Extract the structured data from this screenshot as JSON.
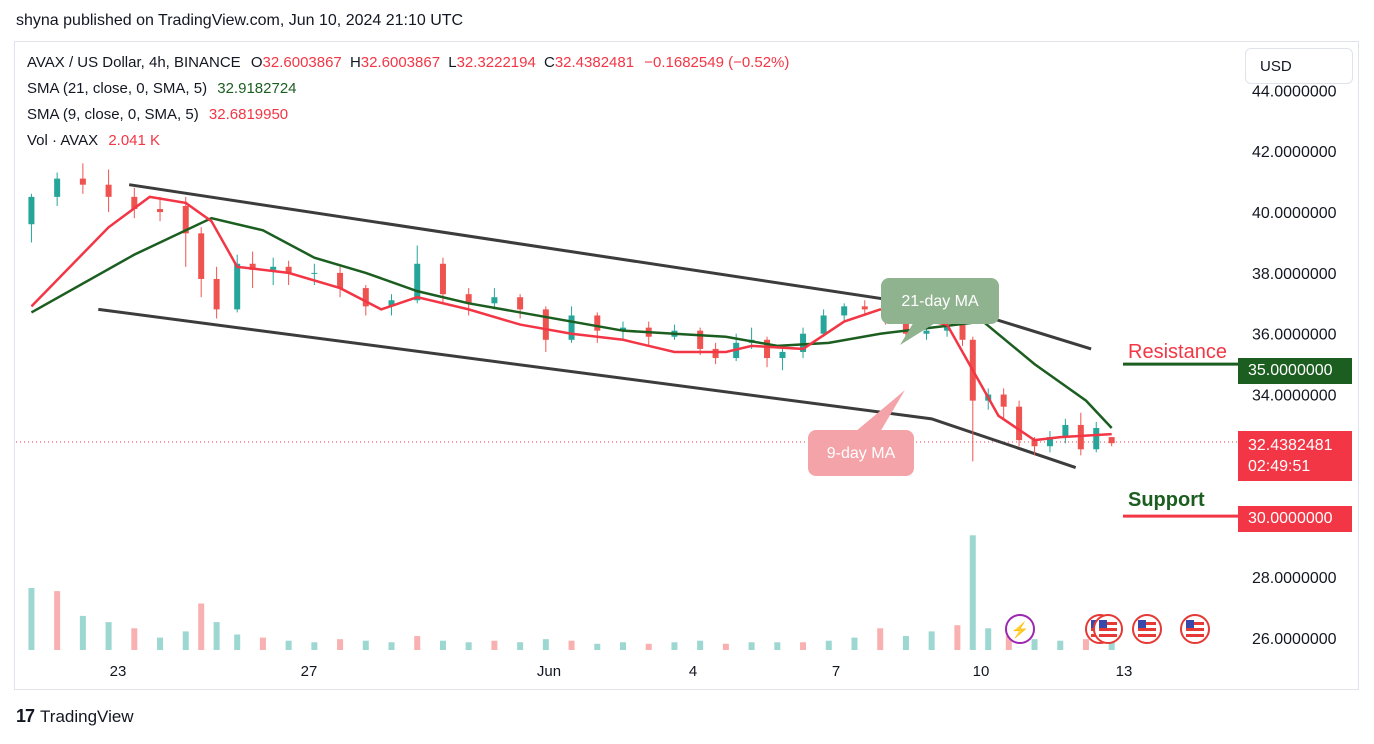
{
  "publisher_line": "shyna published on TradingView.com, Jun 10, 2024 21:10 UTC",
  "legend": {
    "symbol": "AVAX / US Dollar, 4h, BINANCE",
    "o_label": "O",
    "o": "32.6003867",
    "h_label": "H",
    "h": "32.6003867",
    "l_label": "L",
    "l": "32.3222194",
    "c_label": "C",
    "c": "32.4382481",
    "change": "−0.1682549 (−0.52%)",
    "sma21_label": "SMA (21, close, 0, SMA, 5)",
    "sma21_value": "32.9182724",
    "sma9_label": "SMA (9, close, 0, SMA, 5)",
    "sma9_value": "32.6819950",
    "vol_label": "Vol · AVAX",
    "vol_value": "2.041 K"
  },
  "currency_button": "USD",
  "annotations": {
    "ma21": "21-day MA",
    "ma9": "9-day MA",
    "resistance": "Resistance",
    "support": "Support"
  },
  "tags": {
    "resistance_price": "35.0000000",
    "current_price": "32.4382481",
    "countdown": "02:49:51",
    "support_price": "30.0000000"
  },
  "footer_brand": "TradingView",
  "colors": {
    "up": "#26a69a",
    "down": "#ef5350",
    "sma9": "#f23645",
    "sma21": "#1b5e20",
    "channel": "#3c3c3c",
    "resistance": "#1b5e20",
    "support": "#f23645"
  },
  "chart_data": {
    "type": "candlestick",
    "y_ticks": [
      "44.0000000",
      "42.0000000",
      "40.0000000",
      "38.0000000",
      "36.0000000",
      "34.0000000",
      "28.0000000",
      "26.0000000"
    ],
    "x_ticks": [
      "23",
      "27",
      "Jun",
      "4",
      "7",
      "10",
      "13"
    ],
    "resistance_level": 35.0,
    "support_level": 30.0,
    "last_price": 32.4382481,
    "sma21_path": [
      [
        20.0,
        36.7
      ],
      [
        22.0,
        38.6
      ],
      [
        23.5,
        39.8
      ],
      [
        24.5,
        39.4
      ],
      [
        25.5,
        38.5
      ],
      [
        26.5,
        38.0
      ],
      [
        27.5,
        37.4
      ],
      [
        28.5,
        37.0
      ],
      [
        29.5,
        36.7
      ],
      [
        30.5,
        36.4
      ],
      [
        31.5,
        36.1
      ],
      [
        32.5,
        36.0
      ],
      [
        33.5,
        35.9
      ],
      [
        34.5,
        35.6
      ],
      [
        35.5,
        35.7
      ],
      [
        36.5,
        36.0
      ],
      [
        37.5,
        36.2
      ],
      [
        38.5,
        36.4
      ],
      [
        39.5,
        35.0
      ],
      [
        40.5,
        33.8
      ],
      [
        41.0,
        32.9
      ]
    ],
    "sma9_path": [
      [
        20.0,
        36.9
      ],
      [
        21.5,
        39.5
      ],
      [
        22.3,
        40.5
      ],
      [
        23.0,
        40.3
      ],
      [
        23.5,
        39.7
      ],
      [
        24.0,
        38.2
      ],
      [
        25.0,
        38.0
      ],
      [
        26.0,
        37.5
      ],
      [
        26.8,
        36.8
      ],
      [
        27.5,
        37.2
      ],
      [
        28.5,
        36.8
      ],
      [
        29.5,
        36.3
      ],
      [
        30.5,
        36.0
      ],
      [
        31.5,
        35.8
      ],
      [
        32.5,
        35.4
      ],
      [
        33.5,
        35.4
      ],
      [
        34.0,
        35.6
      ],
      [
        35.0,
        35.5
      ],
      [
        35.8,
        36.4
      ],
      [
        36.5,
        36.8
      ],
      [
        37.2,
        36.5
      ],
      [
        37.8,
        36.3
      ],
      [
        38.3,
        34.8
      ],
      [
        38.8,
        33.3
      ],
      [
        39.5,
        32.5
      ],
      [
        40.0,
        32.6
      ],
      [
        41.0,
        32.7
      ]
    ],
    "channel_upper": [
      [
        21.9,
        40.9
      ],
      [
        38.3,
        36.7
      ],
      [
        40.6,
        35.5
      ]
    ],
    "channel_lower": [
      [
        21.3,
        36.8
      ],
      [
        37.5,
        33.2
      ],
      [
        40.3,
        31.6
      ]
    ],
    "candles": [
      [
        20.0,
        39.6,
        40.5,
        39.0,
        40.6
      ],
      [
        20.5,
        40.5,
        41.1,
        40.2,
        41.3
      ],
      [
        21.0,
        41.1,
        40.9,
        40.6,
        41.6
      ],
      [
        21.5,
        40.9,
        40.5,
        40.0,
        41.4
      ],
      [
        22.0,
        40.5,
        40.1,
        39.8,
        40.8
      ],
      [
        22.5,
        40.1,
        40.0,
        39.7,
        40.5
      ],
      [
        23.0,
        40.2,
        39.3,
        38.2,
        40.5
      ],
      [
        23.3,
        39.3,
        37.8,
        37.2,
        39.5
      ],
      [
        23.6,
        37.8,
        36.8,
        36.5,
        38.2
      ],
      [
        24.0,
        36.8,
        38.3,
        36.7,
        38.6
      ],
      [
        24.3,
        38.3,
        38.1,
        37.5,
        38.7
      ],
      [
        24.7,
        38.1,
        38.2,
        37.6,
        38.5
      ],
      [
        25.0,
        38.2,
        38.0,
        37.6,
        38.4
      ],
      [
        25.5,
        38.0,
        38.0,
        37.6,
        38.3
      ],
      [
        26.0,
        38.0,
        37.5,
        37.2,
        38.2
      ],
      [
        26.5,
        37.5,
        36.9,
        36.6,
        37.6
      ],
      [
        27.0,
        36.9,
        37.1,
        36.6,
        37.3
      ],
      [
        27.5,
        37.1,
        38.3,
        37.0,
        38.9
      ],
      [
        28.0,
        38.3,
        37.3,
        37.0,
        38.5
      ],
      [
        28.5,
        37.3,
        37.0,
        36.6,
        37.5
      ],
      [
        29.0,
        37.0,
        37.2,
        36.8,
        37.5
      ],
      [
        29.5,
        37.2,
        36.8,
        36.5,
        37.3
      ],
      [
        30.0,
        36.8,
        35.8,
        35.4,
        36.9
      ],
      [
        30.5,
        35.8,
        36.6,
        35.7,
        36.9
      ],
      [
        31.0,
        36.6,
        36.1,
        35.7,
        36.7
      ],
      [
        31.5,
        36.1,
        36.2,
        35.8,
        36.4
      ],
      [
        32.0,
        36.2,
        35.9,
        35.6,
        36.4
      ],
      [
        32.5,
        35.9,
        36.1,
        35.8,
        36.3
      ],
      [
        33.0,
        36.1,
        35.5,
        35.3,
        36.2
      ],
      [
        33.3,
        35.5,
        35.2,
        35.0,
        35.7
      ],
      [
        33.7,
        35.2,
        35.7,
        35.1,
        36.0
      ],
      [
        34.0,
        35.7,
        35.8,
        35.5,
        36.2
      ],
      [
        34.3,
        35.8,
        35.2,
        34.9,
        35.9
      ],
      [
        34.6,
        35.2,
        35.4,
        34.8,
        35.6
      ],
      [
        35.0,
        35.4,
        36.0,
        35.2,
        36.2
      ],
      [
        35.4,
        36.0,
        36.6,
        35.9,
        36.8
      ],
      [
        35.8,
        36.6,
        36.9,
        36.4,
        37.0
      ],
      [
        36.2,
        36.9,
        36.8,
        36.6,
        37.1
      ],
      [
        36.6,
        36.8,
        36.6,
        36.3,
        37.2
      ],
      [
        37.0,
        36.6,
        36.0,
        35.8,
        36.7
      ],
      [
        37.4,
        36.0,
        36.1,
        35.8,
        36.4
      ],
      [
        37.8,
        36.1,
        36.3,
        35.9,
        36.6
      ],
      [
        38.1,
        36.3,
        35.8,
        35.6,
        36.9
      ],
      [
        38.3,
        35.8,
        33.8,
        31.8,
        35.9
      ],
      [
        38.6,
        33.8,
        34.0,
        33.5,
        34.2
      ],
      [
        38.9,
        34.0,
        33.6,
        33.2,
        34.2
      ],
      [
        39.2,
        33.6,
        32.5,
        32.3,
        33.8
      ],
      [
        39.5,
        32.5,
        32.3,
        32.0,
        32.6
      ],
      [
        39.8,
        32.3,
        32.6,
        32.1,
        32.8
      ],
      [
        40.1,
        32.6,
        33.0,
        32.4,
        33.2
      ],
      [
        40.4,
        33.0,
        32.2,
        32.0,
        33.4
      ],
      [
        40.7,
        32.2,
        32.9,
        32.1,
        33.1
      ],
      [
        41.0,
        32.6,
        32.4,
        32.3,
        32.6
      ]
    ],
    "volume": [
      [
        20.0,
        40
      ],
      [
        20.5,
        38
      ],
      [
        21.0,
        22
      ],
      [
        21.5,
        18
      ],
      [
        22.0,
        14
      ],
      [
        22.5,
        8
      ],
      [
        23.0,
        12
      ],
      [
        23.3,
        30
      ],
      [
        23.6,
        18
      ],
      [
        24.0,
        10
      ],
      [
        24.5,
        8
      ],
      [
        25.0,
        6
      ],
      [
        25.5,
        5
      ],
      [
        26.0,
        7
      ],
      [
        26.5,
        6
      ],
      [
        27.0,
        5
      ],
      [
        27.5,
        9
      ],
      [
        28.0,
        6
      ],
      [
        28.5,
        5
      ],
      [
        29.0,
        6
      ],
      [
        29.5,
        5
      ],
      [
        30.0,
        7
      ],
      [
        30.5,
        6
      ],
      [
        31.0,
        4
      ],
      [
        31.5,
        5
      ],
      [
        32.0,
        4
      ],
      [
        32.5,
        5
      ],
      [
        33.0,
        6
      ],
      [
        33.5,
        4
      ],
      [
        34.0,
        5
      ],
      [
        34.5,
        5
      ],
      [
        35.0,
        5
      ],
      [
        35.5,
        6
      ],
      [
        36.0,
        8
      ],
      [
        36.5,
        14
      ],
      [
        37.0,
        9
      ],
      [
        37.5,
        12
      ],
      [
        38.0,
        16
      ],
      [
        38.3,
        74
      ],
      [
        38.6,
        14
      ],
      [
        39.0,
        9
      ],
      [
        39.5,
        7
      ],
      [
        40.0,
        6
      ],
      [
        40.5,
        7
      ],
      [
        41.0,
        5
      ]
    ],
    "x_range": [
      19.7,
      43.3
    ],
    "y_range": [
      25.6,
      45.0
    ]
  }
}
